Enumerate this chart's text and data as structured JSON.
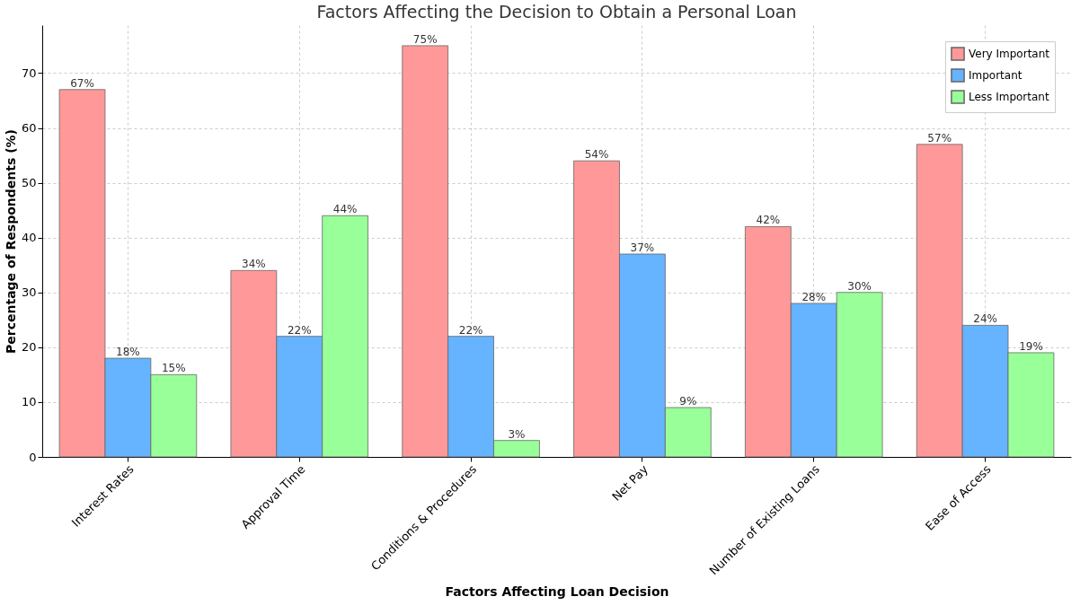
{
  "chart_data": {
    "type": "bar",
    "title": "Factors Affecting the Decision to Obtain a Personal Loan",
    "xlabel": "Factors Affecting Loan Decision",
    "ylabel": "Percentage of Respondents (%)",
    "categories": [
      "Interest Rates",
      "Approval Time",
      "Conditions & Procedures",
      "Net Pay",
      "Number of Existing Loans",
      "Ease of Access"
    ],
    "series": [
      {
        "name": "Very Important",
        "color": "#ff9999",
        "values": [
          67,
          34,
          75,
          54,
          42,
          57
        ],
        "value_labels": [
          "67%",
          "34%",
          "75%",
          "54%",
          "42%",
          "57%"
        ]
      },
      {
        "name": "Important",
        "color": "#66b3ff",
        "values": [
          18,
          22,
          22,
          37,
          28,
          24
        ],
        "value_labels": [
          "18%",
          "22%",
          "22%",
          "37%",
          "28%",
          "24%"
        ]
      },
      {
        "name": "Less Important",
        "color": "#99ff99",
        "values": [
          15,
          44,
          3,
          9,
          30,
          19
        ],
        "value_labels": [
          "15%",
          "44%",
          "3%",
          "9%",
          "30%",
          "19%"
        ]
      }
    ],
    "ylim": [
      0,
      78.75
    ],
    "yticks": [
      0,
      10,
      20,
      30,
      40,
      50,
      60,
      70
    ],
    "grid": true,
    "legend": "top right"
  }
}
